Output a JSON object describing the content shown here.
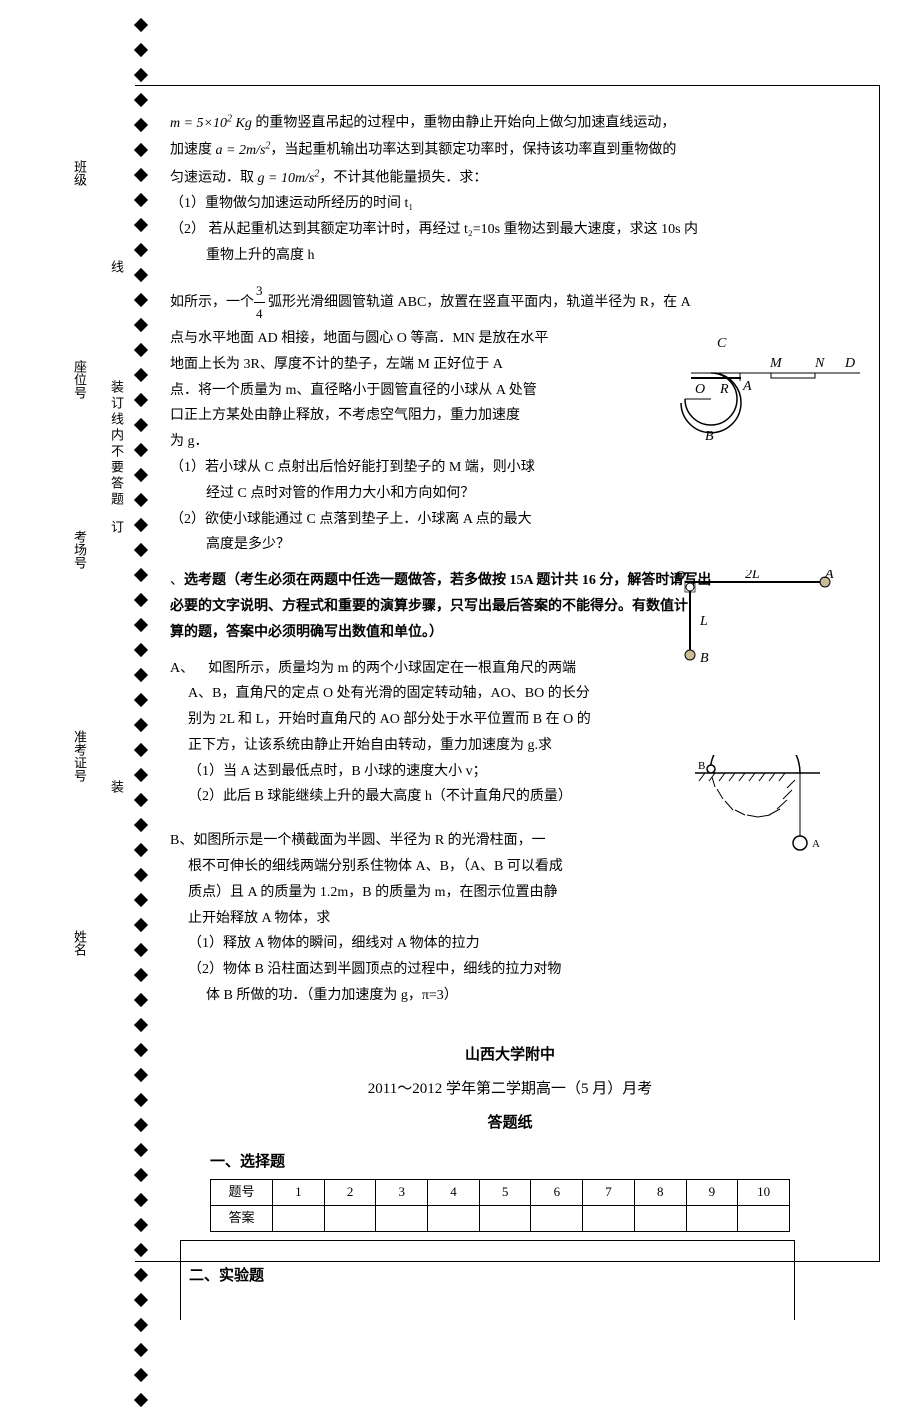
{
  "diamonds": {
    "count": 56
  },
  "vertical_labels": {
    "class": "班级",
    "seat": "座位号",
    "exam_room": "考场号",
    "exam_id": "准考证号",
    "name": "姓名"
  },
  "binding": {
    "line1": "装订线内不要答题",
    "zhuang": "装",
    "xian": "线",
    "ding": "订"
  },
  "q12": {
    "mass_expr": "m = 5×10² Kg",
    "line1_suffix": " 的重物竖直吊起的过程中，重物由静止开始向上做匀加速直线运动，",
    "line2_prefix": "加速度 ",
    "accel_expr": "a = 2m/s²",
    "line2_mid": "，当起重机输出功率达到其额定功率时，保持该功率直到重物做的",
    "line3_prefix": "匀速运动．取 ",
    "g_expr": "g = 10m/s²",
    "line3_suffix": "，不计其他能量损失．求：",
    "sub1": "（1）重物做匀加速运动所经历的时间 t₁",
    "sub2_prefix": "（2） 若从起重机达到其额定功率计时，再经过 t₂=10s 重物达到最大速度，求这 10s 内",
    "sub2_line2": "重物上升的高度 h"
  },
  "q13": {
    "prefix": "如所示，一个",
    "frac_num": "3",
    "frac_den": "4",
    "mid": " 弧形光滑细圆管轨道 ABC，放置在竖直平面内，轨道半径为 R，在 A",
    "line2": "点与水平地面 AD 相接，地面与圆心 O 等高．MN 是放在水平",
    "line3": "地面上长为 3R、厚度不计的垫子，左端 M 正好位于 A",
    "line4": "点．将一个质量为 m、直径略小于圆管直径的小球从 A 处管",
    "line5": "口正上方某处由静止释放，不考虑空气阻力，重力加速度",
    "line6": "为 g．",
    "sub1_line1": "（1）若小球从 C 点射出后恰好能打到垫子的 M 端，则小球",
    "sub1_line2": "经过 C 点时对管的作用力大小和方向如何？",
    "sub2_line1": "（2）欲使小球能通过 C 点落到垫子上．小球离 A 点的最大",
    "sub2_line2": "高度是多少？"
  },
  "optional": {
    "header": "选考题（考生必须在两题中任选一题做答，若多做按 15A 题计共 16 分，解答时请写出",
    "line2": "必要的文字说明、方程式和重要的演算步骤，只写出最后答案的不能得分。有数值计",
    "line3": "算的题，答案中必须明确写出数值和单位。）"
  },
  "q15a": {
    "num": "A、",
    "line1": "如图所示，质量均为 m 的两个小球固定在一根直角尺的两端",
    "line2": "A、B，直角尺的定点 O 处有光滑的固定转动轴，AO、BO 的长分",
    "line3": "别为 2L 和 L，开始时直角尺的 AO 部分处于水平位置而 B 在 O 的",
    "line4": "正下方，让该系统由静止开始自由转动，重力加速度为 g.求",
    "sub1": "（1）当 A 达到最低点时，B 小球的速度大小 v；",
    "sub2": "（2）此后 B 球能继续上升的最大高度 h（不计直角尺的质量）"
  },
  "q15b": {
    "num": "B、",
    "line1": "如图所示是一个横截面为半圆、半径为 R 的光滑柱面，一",
    "line2": "根不可伸长的细线两端分别系住物体 A、B，（A、B 可以看成",
    "line3": "质点）且 A 的质量为 1.2m，B 的质量为 m，在图示位置由静",
    "line4": "止开始释放 A 物体，求",
    "sub1": "（1）释放 A 物体的瞬间，细线对 A 物体的拉力",
    "sub2_line1": "（2）物体 B 沿柱面达到半圆顶点的过程中，细线的拉力对物",
    "sub2_line2": "体 B 所做的功．（重力加速度为 g，π=3）"
  },
  "footer": {
    "school": "山西大学附中",
    "exam_title": "2011～2012 学年第二学期高一（5 月）月考",
    "sheet_title": "答题纸",
    "section1": "一、选择题",
    "section2": "二、实验题",
    "row_header": "题号",
    "answer_header": "答案",
    "cols": [
      "1",
      "2",
      "3",
      "4",
      "5",
      "6",
      "7",
      "8",
      "9",
      "10"
    ]
  },
  "diagram1": {
    "labels": {
      "C": "C",
      "O": "O",
      "R": "R",
      "B": "B",
      "A": "A",
      "M": "M",
      "N": "N",
      "D": "D"
    }
  },
  "diagram2": {
    "labels": {
      "O": "O",
      "2L": "2L",
      "A": "A",
      "L": "L",
      "B": "B"
    }
  },
  "diagram3": {
    "labels": {
      "B": "B",
      "A": "A"
    }
  }
}
